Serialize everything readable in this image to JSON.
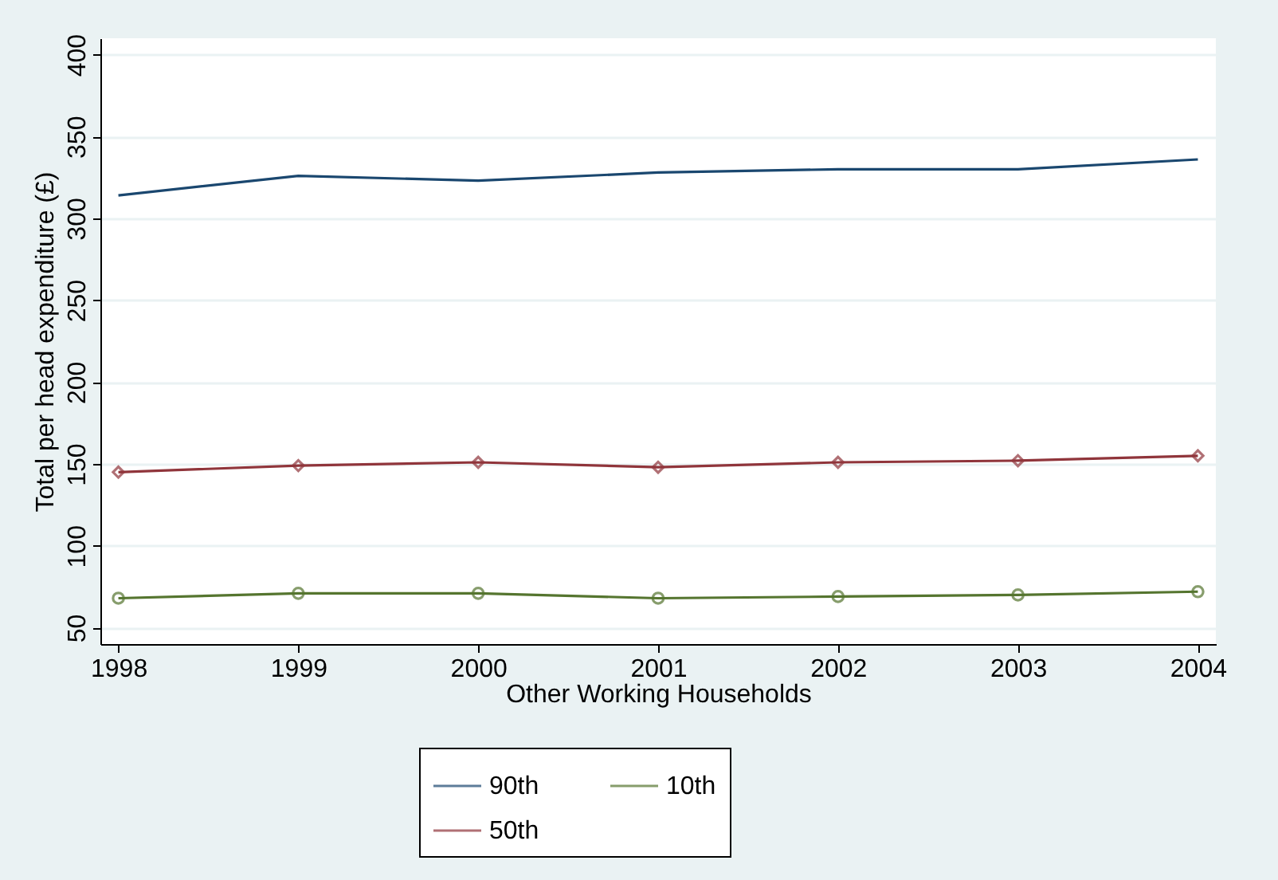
{
  "chart_data": {
    "type": "line",
    "xlabel": "Other Working Households",
    "ylabel": "Total per head expenditure (£)",
    "x": [
      1998,
      1999,
      2000,
      2001,
      2002,
      2003,
      2004
    ],
    "series": [
      {
        "name": "90th",
        "color": "#1a476f",
        "marker": "none",
        "values": [
          314,
          326,
          323,
          328,
          330,
          330,
          336
        ]
      },
      {
        "name": "50th",
        "color": "#90353b",
        "marker": "diamond",
        "values": [
          145,
          149,
          151,
          148,
          151,
          152,
          155
        ]
      },
      {
        "name": "10th",
        "color": "#55752f",
        "marker": "circle",
        "values": [
          68,
          71,
          71,
          68,
          69,
          70,
          72
        ]
      }
    ],
    "xlim": [
      1997.9,
      2004.1
    ],
    "xticks": [
      1998,
      1999,
      2000,
      2001,
      2002,
      2003,
      2004
    ],
    "ylim": [
      40,
      410
    ],
    "yticks": [
      50,
      100,
      150,
      200,
      250,
      300,
      350,
      400
    ],
    "grid": "y",
    "legend": "bottom"
  }
}
